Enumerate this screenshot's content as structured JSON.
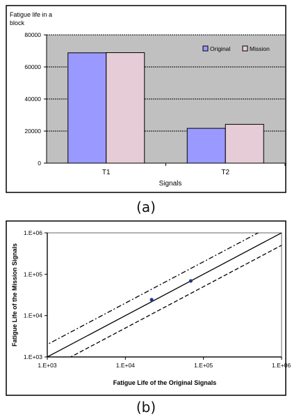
{
  "chart_data": [
    {
      "type": "bar",
      "ylabel": "Fatigue life in a block",
      "ylabel_lines": [
        "Fatigue life in a",
        "block"
      ],
      "xlabel": "Signals",
      "categories": [
        "T1",
        "T2"
      ],
      "series": [
        {
          "name": "Original",
          "values": [
            68800,
            21700
          ]
        },
        {
          "name": "Mission",
          "values": [
            68900,
            24200
          ]
        }
      ],
      "ylim": [
        0,
        80000
      ],
      "yticks": [
        0,
        20000,
        40000,
        60000,
        80000
      ],
      "ytick_labels": [
        "0",
        "20000",
        "40000",
        "60000",
        "80000"
      ],
      "grid": true,
      "legend": "top-right",
      "colors": {
        "Original": "#9999ff",
        "Mission": "#e6ccd6",
        "plot_bg": "#c0c0c0",
        "grid": "#000000"
      }
    },
    {
      "type": "scatter",
      "xlabel": "Fatigue Life of the Original Signals",
      "ylabel": "Fatigue Life of the Mission Signals",
      "xscale": "log",
      "yscale": "log",
      "xlim": [
        1000,
        1000000
      ],
      "ylim": [
        1000,
        1000000
      ],
      "xticks": [
        1000,
        10000,
        100000,
        1000000
      ],
      "yticks": [
        1000,
        10000,
        100000,
        1000000
      ],
      "xtick_labels": [
        "1.E+03",
        "1.E+04",
        "1.E+05",
        "1.E+06"
      ],
      "ytick_labels": [
        "1.E+03",
        "1.E+04",
        "1.E+05",
        "1.E+06"
      ],
      "points": [
        {
          "x": 21700,
          "y": 24200
        },
        {
          "x": 68800,
          "y": 68900
        }
      ],
      "reference_lines": [
        {
          "kind": "y=x",
          "factor": 1,
          "style": "solid"
        },
        {
          "kind": "y=2x",
          "factor": 2,
          "style": "dash-dot"
        },
        {
          "kind": "y=x/2",
          "factor": 0.5,
          "style": "dashed"
        }
      ],
      "grid": false,
      "colors": {
        "points": "#1f3a93"
      }
    }
  ],
  "captions": {
    "a": "(a)",
    "b": "(b)"
  }
}
